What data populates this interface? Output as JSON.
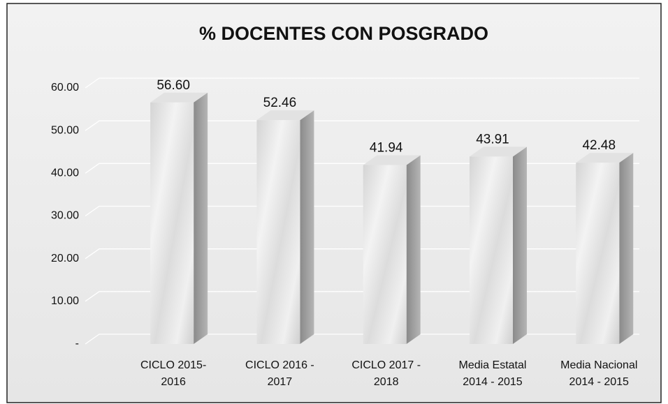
{
  "chart_data": {
    "type": "bar3d",
    "title": "% DOCENTES CON POSGRADO",
    "categories": [
      [
        "CICLO 2015-",
        "2016"
      ],
      [
        "CICLO 2016 -",
        "2017"
      ],
      [
        "CICLO 2017 -",
        "2018"
      ],
      [
        "Media Estatal",
        "2014 - 2015"
      ],
      [
        "Media Nacional",
        "2014 - 2015"
      ]
    ],
    "values": [
      56.6,
      52.46,
      41.94,
      43.91,
      42.48
    ],
    "value_labels": [
      "56.60",
      "52.46",
      "41.94",
      "43.91",
      "42.48"
    ],
    "ylim": [
      0,
      60
    ],
    "yticks": [
      {
        "value": 0,
        "label": "-"
      },
      {
        "value": 10,
        "label": "10.00"
      },
      {
        "value": 20,
        "label": "20.00"
      },
      {
        "value": 30,
        "label": "30.00"
      },
      {
        "value": 40,
        "label": "40.00"
      },
      {
        "value": 50,
        "label": "50.00"
      },
      {
        "value": 60,
        "label": "60.00"
      }
    ],
    "grid": true
  }
}
